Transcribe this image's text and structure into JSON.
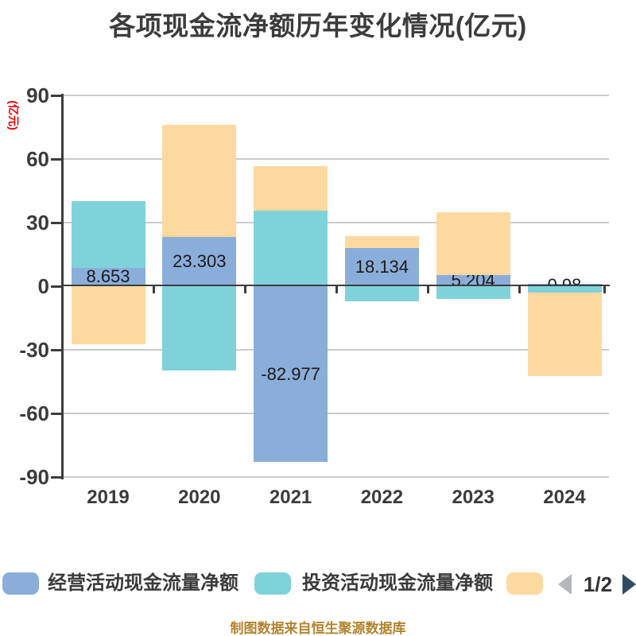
{
  "title": "各项现金流净额历年变化情况(亿元)",
  "y_axis_unit": "(亿元)",
  "y_axis_unit_color": "#ee0000",
  "footer": {
    "text": "制图数据来自恒生聚源数据库",
    "color": "#b2832c"
  },
  "legend": {
    "items": [
      {
        "label": "经营活动现金流量净额",
        "color": "#8badda"
      },
      {
        "label": "投资活动现金流量净额",
        "color": "#80d2da"
      },
      {
        "label": "",
        "color": "#fdd9a0"
      }
    ],
    "pager": {
      "text": "1/2",
      "prev_color": "#b3b7ba",
      "next_color": "#2e4b63",
      "prev_enabled": false,
      "next_enabled": true
    }
  },
  "chart_data": {
    "type": "bar",
    "stacked": true,
    "title": "各项现金流净额历年变化情况(亿元)",
    "ylabel": "(亿元)",
    "ylim": [
      -90,
      90
    ],
    "y_ticks": [
      90,
      60,
      30,
      0,
      -30,
      -60,
      -90
    ],
    "grid": true,
    "legend_position": "bottom",
    "categories": [
      "2019",
      "2020",
      "2021",
      "2022",
      "2023",
      "2024"
    ],
    "series": [
      {
        "name": "经营活动现金流量净额",
        "color": "#8badda",
        "values": [
          8.653,
          23.303,
          -82.977,
          18.134,
          5.204,
          0.98
        ],
        "value_labels": [
          "8.653",
          "23.303",
          "-82.977",
          "18.134",
          "5.204",
          "0.98"
        ]
      },
      {
        "name": "投资活动现金流量净额",
        "color": "#80d2da",
        "values": [
          31.4,
          -39.7,
          35.6,
          -7.1,
          -5.9,
          -3.1
        ]
      },
      {
        "name": "",
        "color": "#fdd9a0",
        "values": [
          -27.5,
          52.8,
          21.0,
          5.5,
          29.7,
          -39.3
        ]
      }
    ]
  }
}
